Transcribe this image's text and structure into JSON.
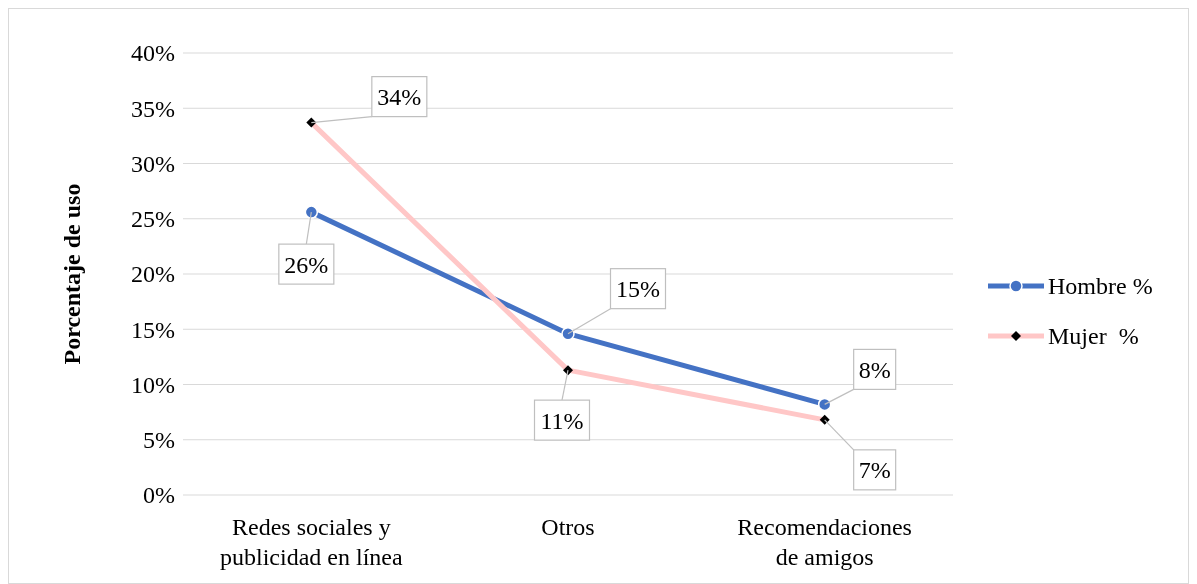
{
  "chart_data": {
    "type": "line",
    "ylabel": "Porcentaje de uso",
    "categories": [
      "Redes sociales y publicidad en línea",
      "Otros",
      "Recomendaciones de amigos"
    ],
    "series": [
      {
        "name": "Hombre %",
        "color": "#4472c4",
        "marker": "circle",
        "values": [
          25.6,
          14.6,
          8.2
        ],
        "value_labels": [
          "26%",
          "15%",
          "8%"
        ]
      },
      {
        "name": "Mujer  %",
        "color": "#ffc7c7",
        "marker": "diamond",
        "values": [
          33.7,
          11.3,
          6.8
        ],
        "value_labels": [
          "34%",
          "11%",
          "7%"
        ]
      }
    ],
    "ylim": [
      0,
      40
    ],
    "yticks": [
      {
        "value": 0,
        "label": "0%"
      },
      {
        "value": 5,
        "label": "5%"
      },
      {
        "value": 10,
        "label": "10%"
      },
      {
        "value": 15,
        "label": "15%"
      },
      {
        "value": 20,
        "label": "20%"
      },
      {
        "value": 25,
        "label": "25%"
      },
      {
        "value": 30,
        "label": "30%"
      },
      {
        "value": 35,
        "label": "35%"
      },
      {
        "value": 40,
        "label": "40%"
      }
    ],
    "grid": "y",
    "legend": "right"
  }
}
